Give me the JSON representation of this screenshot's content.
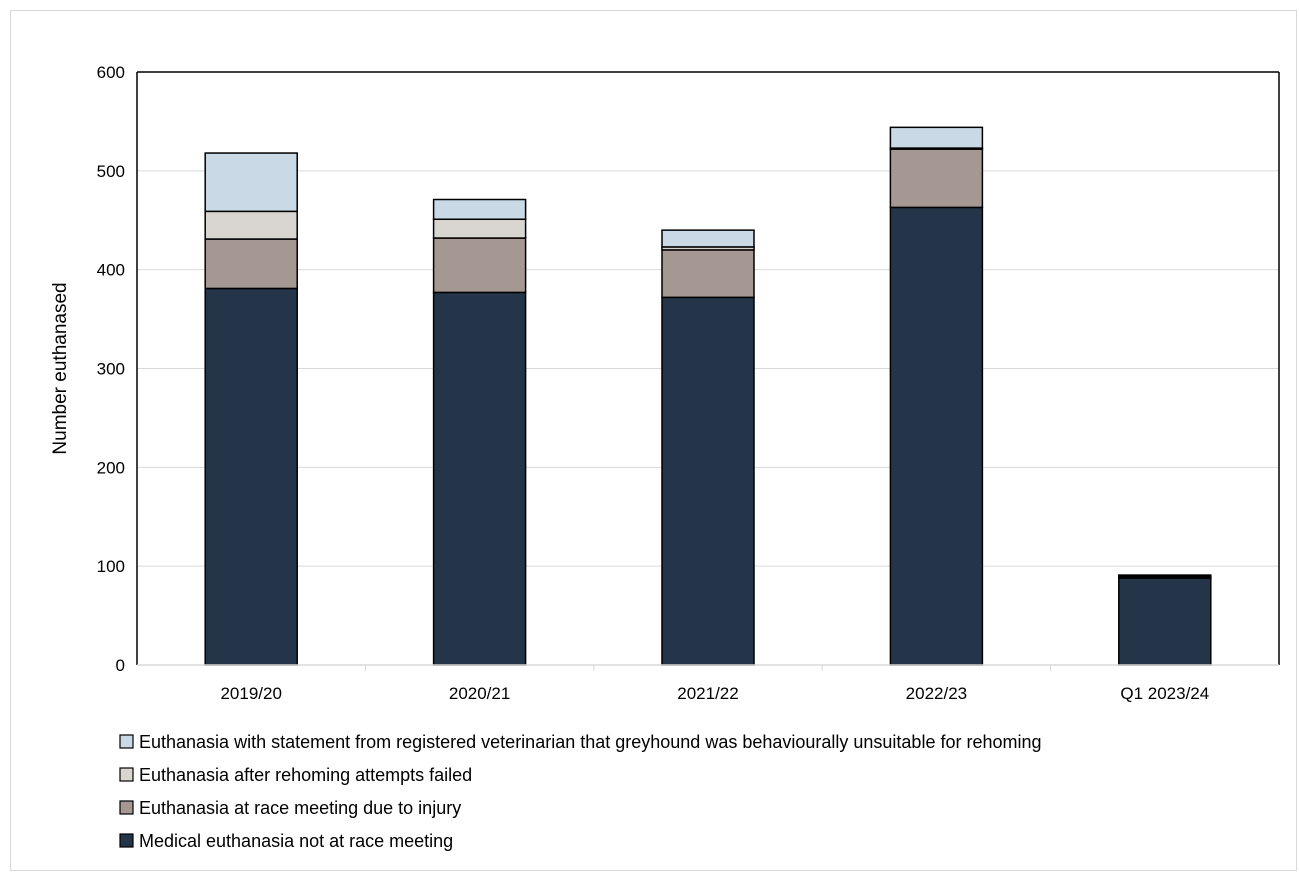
{
  "chart_data": {
    "type": "bar",
    "stacked": true,
    "title": "",
    "xlabel": "",
    "ylabel": "Number euthanased",
    "ylim": [
      0,
      600
    ],
    "yticks": [
      0,
      100,
      200,
      300,
      400,
      500,
      600
    ],
    "grid": true,
    "legend_position": "bottom",
    "categories": [
      "2019/20",
      "2020/21",
      "2021/22",
      "2022/23",
      "Q1 2023/24"
    ],
    "series": [
      {
        "name": "Medical euthanasia not at race meeting",
        "color": "#243549",
        "values": [
          381,
          377,
          372,
          463,
          88
        ]
      },
      {
        "name": "Euthanasia at race meeting due to injury",
        "color": "#a59893",
        "values": [
          50,
          55,
          48,
          59,
          1
        ]
      },
      {
        "name": "Euthanasia after rehoming attempts failed",
        "color": "#d9d6d2",
        "values": [
          28,
          19,
          3,
          1,
          1
        ]
      },
      {
        "name": "Euthanasia with statement from registered veterinarian that greyhound was behaviourally unsuitable for rehoming",
        "color": "#c9d9e6",
        "values": [
          59,
          20,
          17,
          21,
          1
        ]
      }
    ],
    "legend_order": [
      3,
      2,
      1,
      0
    ]
  }
}
